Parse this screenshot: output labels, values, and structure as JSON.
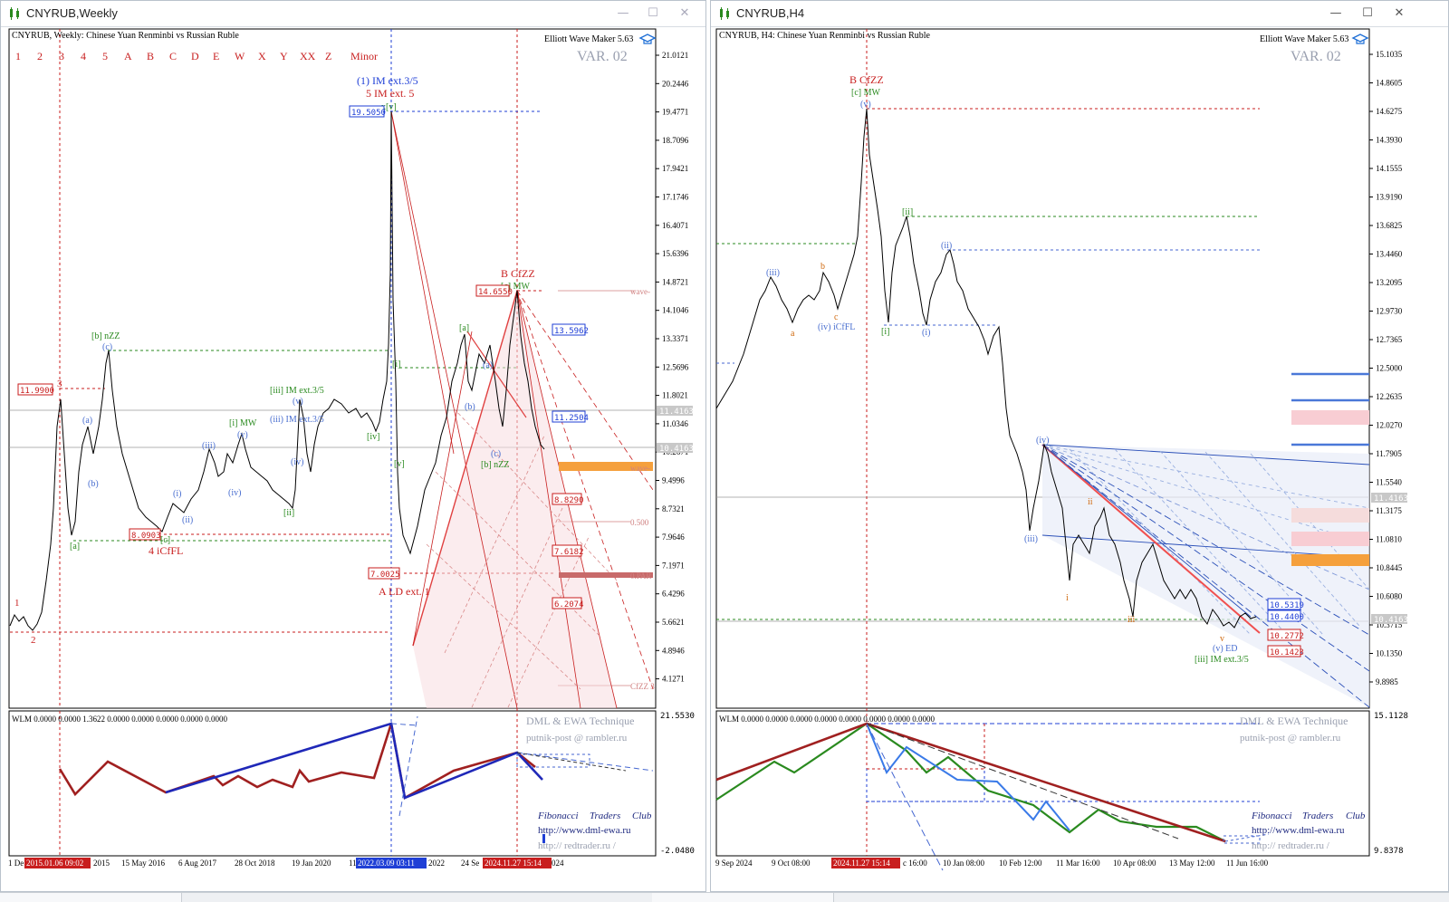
{
  "left_window": {
    "title": "CNYRUB,Weekly",
    "header": "CNYRUB, Weekly:  Chinese Yuan Renminbi vs Russian Ruble",
    "plugin": "Elliott Wave Maker 5.63",
    "variant": "VAR. 02",
    "wave_buttons": [
      "1",
      "2",
      "3",
      "4",
      "5",
      "A",
      "B",
      "C",
      "D",
      "E",
      "W",
      "X",
      "Y",
      "XX",
      "Z",
      "Minor"
    ],
    "price_ticks": [
      "21.0121",
      "20.2446",
      "19.4771",
      "18.7096",
      "17.9421",
      "17.1746",
      "16.4071",
      "15.6396",
      "14.8721",
      "14.1046",
      "13.3371",
      "12.5696",
      "11.8021",
      "11.0346",
      "10.2671",
      "9.4996",
      "8.7321",
      "7.9646",
      "7.1971",
      "6.4296",
      "5.6621",
      "4.8946",
      "4.1271"
    ],
    "price_markers": [
      "11.4163",
      "10.4163"
    ],
    "wave_labels": {
      "im_ext_blue": "(1) IM ext.3/5",
      "im_ext_red": "5 IM ext. 5",
      "xv": "x[v]",
      "b_nzz": "[b] nZZ",
      "c_blue": "(c)",
      "iii_im": "[iii] IM ext.3/5",
      "iii_im_blue": "(iii) IM ext.3/5",
      "i_mw": "[i] MW",
      "iv_green": "[iv]",
      "ii_green": "[ii]",
      "a_green": "[a]",
      "c_green": "[c]",
      "four_icfl": "4 iCfFL",
      "b_cfzz": "B CfZZ",
      "c_mw": "[c] MW",
      "a_ld": "A LD ext. 1",
      "b_nzz2": "[b] nZZ",
      "three": "3",
      "one": "1",
      "two": "2",
      "a_blue": "(a)",
      "b_blue": "(b)",
      "iii_blue": "(iii)",
      "i_blue": "(i)",
      "ii_blue": "(ii)",
      "iv_blue": "(iv)",
      "v_blue": "(v)",
      "v_blue2": "(v)",
      "iv_blue2": "(iv)",
      "v_green": "[v]",
      "i_green": "[i]",
      "a_green2": "[a]",
      "a_blue2": "(a)",
      "b_blue2": "(b)",
      "c_blue2": "(c)"
    },
    "price_boxes": {
      "top": "19.5050",
      "b_high": "14.6550",
      "left_high": "11.9900",
      "low_4": "8.0903",
      "low_a": "7.0025",
      "tgt1": "13.5962",
      "tgt2": "11.2504",
      "tgt3": "8.8290",
      "tgt4": "7.6182",
      "tgt5": "6.2074"
    },
    "right_edge_labels": {
      "wave_top": "wave-",
      "wave_mid": "wave-",
      "half": "0.500",
      "ppar": "0.PAR",
      "cfzz": "CfZZ 3"
    },
    "indicator": {
      "header": "WLM 0.0000 0.0000 1.3622 0.0000 0.0000 0.0000 0.0000 0.0000",
      "top_val": "21.5530",
      "bottom_val": "-2.0480",
      "brand1": "DML & EWA Technique",
      "brand2": "putnik-post @ rambler.ru",
      "club": [
        "Fibonacci",
        "Traders",
        "Club"
      ],
      "url1": "http://www.dml-ewa.ru",
      "url2": "http:// redtrader.ru /"
    },
    "time_axis": {
      "labels": [
        "1 De",
        "2015",
        "15 May 2016",
        "6 Aug 2017",
        "28 Oct 2018",
        "19 Jan 2020",
        "11",
        "2022",
        "24 Se",
        "024"
      ],
      "highlighted": [
        "2015.01.06 09:02",
        "2022.03.09 03:11",
        "2024.11.27 15:14"
      ]
    }
  },
  "right_window": {
    "title": "CNYRUB,H4",
    "header": "CNYRUB, H4:  Chinese Yuan Renminbi vs Russian Ruble",
    "plugin": "Elliott Wave Maker 5.63",
    "variant": "VAR. 02",
    "price_ticks": [
      "15.1035",
      "14.8605",
      "14.6275",
      "14.3930",
      "14.1555",
      "13.9190",
      "13.6825",
      "13.4460",
      "13.2095",
      "12.9730",
      "12.7365",
      "12.5000",
      "12.2635",
      "12.0270",
      "11.7905",
      "11.5540",
      "11.3175",
      "11.0810",
      "10.8445",
      "10.6080",
      "10.3715",
      "10.1350",
      "9.8985"
    ],
    "price_markers": [
      "11.4163",
      "10.4163"
    ],
    "price_boxes": {
      "a": "10.5319",
      "b": "10.4400",
      "c": "10.2772",
      "d": "10.1423"
    },
    "wave_labels": {
      "b_cfzz": "B CfZZ",
      "c_mw": "[c] MW",
      "v_top": "(v)",
      "iii_blue": "(iii)",
      "b_orange": "b",
      "a_orange": "a",
      "c_orange": "c",
      "iv_icfl": "(iv) iCfFL",
      "ii_green": "[ii]",
      "ii_blue": "(ii)",
      "i_green": "[i]",
      "i_blue": "(i)",
      "iv_blue": "(iv)",
      "iii_blue2": "(iii)",
      "ii_orange": "ii",
      "i_orange": "i",
      "iii_orange": "iii",
      "v_orange": "v",
      "v_ed": "(v) ED",
      "iii_im": "[iii] IM ext.3/5"
    },
    "indicator": {
      "header": "WLM 0.0000 0.0000 0.0000 0.0000 0.0000 0.0000 0.0000 0.0000",
      "top_val": "15.1128",
      "bottom_val": "9.8378",
      "brand1": "DML & EWA Technique",
      "brand2": "putnik-post @ rambler.ru",
      "club": [
        "Fibonacci",
        "Traders",
        "Club"
      ],
      "url1": "http://www.dml-ewa.ru",
      "url2": "http:// redtrader.ru /"
    },
    "time_axis": {
      "labels": [
        "9 Sep 2024",
        "9 Oct 08:00",
        "c 16:00",
        "10 Jan 08:00",
        "10 Feb 12:00",
        "11 Mar 16:00",
        "10 Apr 08:00",
        "13 May 12:00",
        "11 Jun 16:00"
      ],
      "highlighted": [
        "2024.11.27 15:14"
      ]
    }
  },
  "window_controls": {
    "minimize": "—",
    "maximize": "☐",
    "close": "✕"
  },
  "colors": {
    "bull": "#000000",
    "red": "#b22222",
    "blue": "#1f3fd6",
    "green": "#2a8a1f",
    "orange": "#f5a03c",
    "pink": "#f4c9cf"
  }
}
